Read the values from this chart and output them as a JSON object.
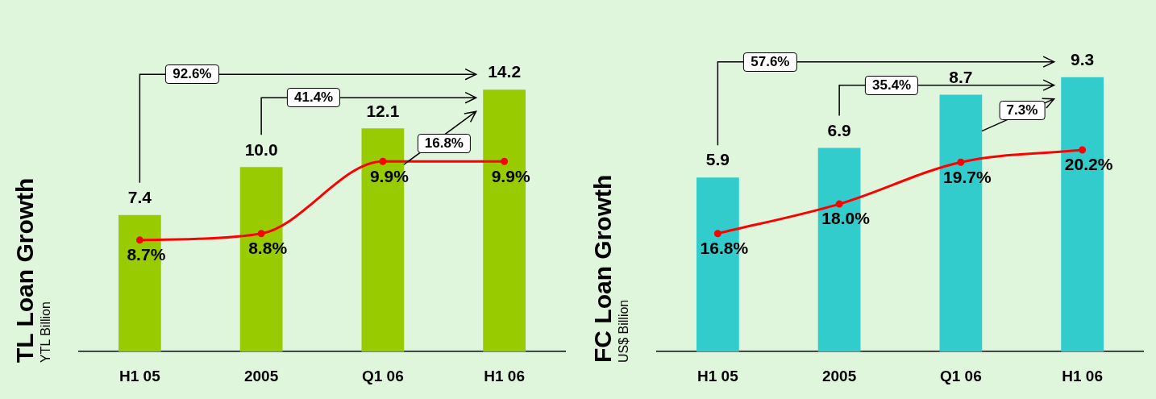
{
  "chart_data": [
    {
      "type": "bar",
      "ylabel": "TL Loan Growth",
      "subtitle": "YTL Billion",
      "categories": [
        "H1 05",
        "2005",
        "Q1 06",
        "H1 06"
      ],
      "tick_labels": "x",
      "grid": false,
      "legend": false,
      "marker": "circle",
      "series": [
        {
          "color": "#99cc00",
          "values": [
            7.4,
            10.0,
            12.1,
            14.2
          ],
          "value_labels": [
            "7.4",
            "10.0",
            "12.1",
            "14.2"
          ]
        },
        {
          "type": "line",
          "axis": "y2",
          "color": "#ff0000",
          "values": [
            8.7,
            8.8,
            9.9,
            9.9
          ],
          "value_labels": [
            "8.7%",
            "8.8%",
            "9.9%",
            "9.9%"
          ]
        }
      ],
      "annotations": [
        "92.6%",
        "41.4%",
        "16.8%"
      ]
    },
    {
      "type": "bar",
      "ylabel": "FC Loan Growth",
      "subtitle": "US$ Billion",
      "categories": [
        "H1 05",
        "2005",
        "Q1 06",
        "H1 06"
      ],
      "tick_labels": "x",
      "grid": false,
      "legend": false,
      "marker": "circle",
      "series": [
        {
          "color": "#33cccc",
          "values": [
            5.9,
            6.9,
            8.7,
            9.3
          ],
          "value_labels": [
            "5.9",
            "6.9",
            "8.7",
            "9.3"
          ]
        },
        {
          "type": "line",
          "axis": "y2",
          "color": "#ff0000",
          "values": [
            16.8,
            18.0,
            19.7,
            20.2
          ],
          "value_labels": [
            "16.8%",
            "18.0%",
            "19.7%",
            "20.2%"
          ]
        }
      ],
      "annotations": [
        "57.6%",
        "35.4%",
        "7.3%"
      ]
    }
  ]
}
